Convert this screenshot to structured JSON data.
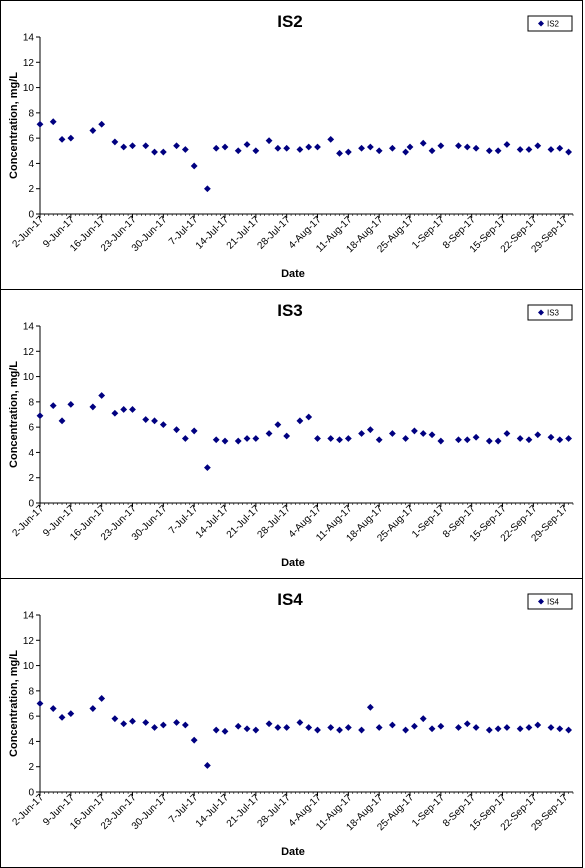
{
  "marker_color": "#000080",
  "chart_data": [
    {
      "type": "scatter",
      "title": "IS2",
      "xlabel": "Date",
      "ylabel": "Concentration, mg/L",
      "ylim": [
        0,
        14
      ],
      "yticks": [
        0,
        2,
        4,
        6,
        8,
        10,
        12,
        14
      ],
      "xlim": [
        "2017-06-02",
        "2017-10-01"
      ],
      "xtick_labels": [
        "2-Jun-17",
        "9-Jun-17",
        "16-Jun-17",
        "23-Jun-17",
        "30-Jun-17",
        "7-Jul-17",
        "14-Jul-17",
        "21-Jul-17",
        "28-Jul-17",
        "4-Aug-17",
        "11-Aug-17",
        "18-Aug-17",
        "25-Aug-17",
        "1-Sep-17",
        "8-Sep-17",
        "15-Sep-17",
        "22-Sep-17",
        "29-Sep-17"
      ],
      "xtick_dates": [
        "2017-06-02",
        "2017-06-09",
        "2017-06-16",
        "2017-06-23",
        "2017-06-30",
        "2017-07-07",
        "2017-07-14",
        "2017-07-21",
        "2017-07-28",
        "2017-08-04",
        "2017-08-11",
        "2017-08-18",
        "2017-08-25",
        "2017-09-01",
        "2017-09-08",
        "2017-09-15",
        "2017-09-22",
        "2017-09-29"
      ],
      "legend_position": "top-right",
      "grid": false,
      "series": [
        {
          "name": "IS2",
          "x": [
            "2017-06-02",
            "2017-06-05",
            "2017-06-07",
            "2017-06-09",
            "2017-06-14",
            "2017-06-16",
            "2017-06-19",
            "2017-06-21",
            "2017-06-23",
            "2017-06-26",
            "2017-06-28",
            "2017-06-30",
            "2017-07-03",
            "2017-07-05",
            "2017-07-07",
            "2017-07-10",
            "2017-07-12",
            "2017-07-14",
            "2017-07-17",
            "2017-07-19",
            "2017-07-21",
            "2017-07-24",
            "2017-07-26",
            "2017-07-28",
            "2017-07-31",
            "2017-08-02",
            "2017-08-04",
            "2017-08-07",
            "2017-08-09",
            "2017-08-11",
            "2017-08-14",
            "2017-08-16",
            "2017-08-18",
            "2017-08-21",
            "2017-08-24",
            "2017-08-25",
            "2017-08-28",
            "2017-08-30",
            "2017-09-01",
            "2017-09-05",
            "2017-09-07",
            "2017-09-09",
            "2017-09-12",
            "2017-09-14",
            "2017-09-16",
            "2017-09-19",
            "2017-09-21",
            "2017-09-23",
            "2017-09-26",
            "2017-09-28",
            "2017-09-30"
          ],
          "y": [
            7.1,
            7.3,
            5.9,
            6.0,
            6.6,
            7.1,
            5.7,
            5.3,
            5.4,
            5.4,
            4.9,
            4.9,
            5.4,
            5.1,
            3.8,
            2.0,
            5.2,
            5.3,
            5.0,
            5.5,
            5.0,
            5.8,
            5.2,
            5.2,
            5.1,
            5.3,
            5.3,
            5.9,
            4.8,
            4.9,
            5.2,
            5.3,
            5.0,
            5.2,
            4.9,
            5.3,
            5.6,
            5.0,
            5.4,
            5.4,
            5.3,
            5.2,
            5.0,
            5.0,
            5.5,
            5.1,
            5.1,
            5.4,
            5.1,
            5.2,
            4.9
          ]
        }
      ]
    },
    {
      "type": "scatter",
      "title": "IS3",
      "xlabel": "Date",
      "ylabel": "Concentration, mg/L",
      "ylim": [
        0,
        14
      ],
      "yticks": [
        0,
        2,
        4,
        6,
        8,
        10,
        12,
        14
      ],
      "xlim": [
        "2017-06-02",
        "2017-10-01"
      ],
      "xtick_labels": [
        "2-Jun-17",
        "9-Jun-17",
        "16-Jun-17",
        "23-Jun-17",
        "30-Jun-17",
        "7-Jul-17",
        "14-Jul-17",
        "21-Jul-17",
        "28-Jul-17",
        "4-Aug-17",
        "11-Aug-17",
        "18-Aug-17",
        "25-Aug-17",
        "1-Sep-17",
        "8-Sep-17",
        "15-Sep-17",
        "22-Sep-17",
        "29-Sep-17"
      ],
      "xtick_dates": [
        "2017-06-02",
        "2017-06-09",
        "2017-06-16",
        "2017-06-23",
        "2017-06-30",
        "2017-07-07",
        "2017-07-14",
        "2017-07-21",
        "2017-07-28",
        "2017-08-04",
        "2017-08-11",
        "2017-08-18",
        "2017-08-25",
        "2017-09-01",
        "2017-09-08",
        "2017-09-15",
        "2017-09-22",
        "2017-09-29"
      ],
      "legend_position": "top-right",
      "grid": false,
      "series": [
        {
          "name": "IS3",
          "x": [
            "2017-06-02",
            "2017-06-05",
            "2017-06-07",
            "2017-06-09",
            "2017-06-14",
            "2017-06-16",
            "2017-06-19",
            "2017-06-21",
            "2017-06-23",
            "2017-06-26",
            "2017-06-28",
            "2017-06-30",
            "2017-07-03",
            "2017-07-05",
            "2017-07-07",
            "2017-07-10",
            "2017-07-12",
            "2017-07-14",
            "2017-07-17",
            "2017-07-19",
            "2017-07-21",
            "2017-07-24",
            "2017-07-26",
            "2017-07-28",
            "2017-07-31",
            "2017-08-02",
            "2017-08-04",
            "2017-08-07",
            "2017-08-09",
            "2017-08-11",
            "2017-08-14",
            "2017-08-16",
            "2017-08-18",
            "2017-08-21",
            "2017-08-24",
            "2017-08-26",
            "2017-08-28",
            "2017-08-30",
            "2017-09-01",
            "2017-09-05",
            "2017-09-07",
            "2017-09-09",
            "2017-09-12",
            "2017-09-14",
            "2017-09-16",
            "2017-09-19",
            "2017-09-21",
            "2017-09-23",
            "2017-09-26",
            "2017-09-28",
            "2017-09-30"
          ],
          "y": [
            6.9,
            7.7,
            6.5,
            7.8,
            7.6,
            8.5,
            7.1,
            7.4,
            7.4,
            6.6,
            6.5,
            6.2,
            5.8,
            5.1,
            5.7,
            2.8,
            5.0,
            4.9,
            4.9,
            5.1,
            5.1,
            5.5,
            6.2,
            5.3,
            6.5,
            6.8,
            5.1,
            5.1,
            5.0,
            5.1,
            5.5,
            5.8,
            5.0,
            5.5,
            5.1,
            5.7,
            5.5,
            5.4,
            4.9,
            5.0,
            5.0,
            5.2,
            4.9,
            4.9,
            5.5,
            5.1,
            5.0,
            5.4,
            5.2,
            5.0,
            5.1
          ]
        }
      ]
    },
    {
      "type": "scatter",
      "title": "IS4",
      "xlabel": "Date",
      "ylabel": "Concentration, mg/L",
      "ylim": [
        0,
        14
      ],
      "yticks": [
        0,
        2,
        4,
        6,
        8,
        10,
        12,
        14
      ],
      "xlim": [
        "2017-06-02",
        "2017-10-01"
      ],
      "xtick_labels": [
        "2-Jun-17",
        "9-Jun-17",
        "16-Jun-17",
        "23-Jun-17",
        "30-Jun-17",
        "7-Jul-17",
        "14-Jul-17",
        "21-Jul-17",
        "28-Jul-17",
        "4-Aug-17",
        "11-Aug-17",
        "18-Aug-17",
        "25-Aug-17",
        "1-Sep-17",
        "8-Sep-17",
        "15-Sep-17",
        "22-Sep-17",
        "29-Sep-17"
      ],
      "xtick_dates": [
        "2017-06-02",
        "2017-06-09",
        "2017-06-16",
        "2017-06-23",
        "2017-06-30",
        "2017-07-07",
        "2017-07-14",
        "2017-07-21",
        "2017-07-28",
        "2017-08-04",
        "2017-08-11",
        "2017-08-18",
        "2017-08-25",
        "2017-09-01",
        "2017-09-08",
        "2017-09-15",
        "2017-09-22",
        "2017-09-29"
      ],
      "legend_position": "top-right",
      "grid": false,
      "series": [
        {
          "name": "IS4",
          "x": [
            "2017-06-02",
            "2017-06-05",
            "2017-06-07",
            "2017-06-09",
            "2017-06-14",
            "2017-06-16",
            "2017-06-19",
            "2017-06-21",
            "2017-06-23",
            "2017-06-26",
            "2017-06-28",
            "2017-06-30",
            "2017-07-03",
            "2017-07-05",
            "2017-07-07",
            "2017-07-10",
            "2017-07-12",
            "2017-07-14",
            "2017-07-17",
            "2017-07-19",
            "2017-07-21",
            "2017-07-24",
            "2017-07-26",
            "2017-07-28",
            "2017-07-31",
            "2017-08-02",
            "2017-08-04",
            "2017-08-07",
            "2017-08-09",
            "2017-08-11",
            "2017-08-14",
            "2017-08-16",
            "2017-08-18",
            "2017-08-21",
            "2017-08-24",
            "2017-08-26",
            "2017-08-28",
            "2017-08-30",
            "2017-09-01",
            "2017-09-05",
            "2017-09-07",
            "2017-09-09",
            "2017-09-12",
            "2017-09-14",
            "2017-09-16",
            "2017-09-19",
            "2017-09-21",
            "2017-09-23",
            "2017-09-26",
            "2017-09-28",
            "2017-09-30"
          ],
          "y": [
            7.0,
            6.6,
            5.9,
            6.2,
            6.6,
            7.4,
            5.8,
            5.4,
            5.6,
            5.5,
            5.1,
            5.3,
            5.5,
            5.3,
            4.1,
            2.1,
            4.9,
            4.8,
            5.2,
            5.0,
            4.9,
            5.4,
            5.1,
            5.1,
            5.5,
            5.1,
            4.9,
            5.1,
            4.9,
            5.1,
            4.9,
            6.7,
            5.1,
            5.3,
            4.9,
            5.2,
            5.8,
            5.0,
            5.2,
            5.1,
            5.4,
            5.1,
            4.9,
            5.0,
            5.1,
            5.0,
            5.1,
            5.3,
            5.1,
            5.0,
            4.9
          ]
        }
      ]
    }
  ]
}
